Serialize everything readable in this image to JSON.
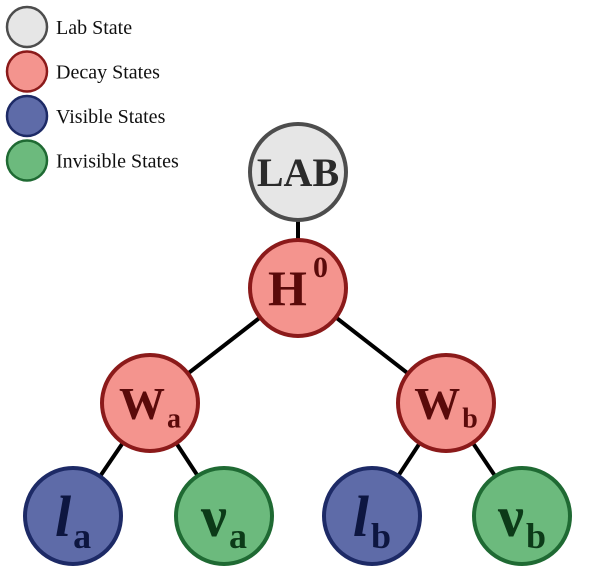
{
  "colors": {
    "lab": {
      "fill": "#e6e6e6",
      "stroke": "#4d4d4d",
      "text": "#2b2b2b"
    },
    "decay": {
      "fill": "#f4948e",
      "stroke": "#8b1a1a",
      "text": "#5a0a0a"
    },
    "visible": {
      "fill": "#5e6ba8",
      "stroke": "#1d2a66",
      "text": "#0d1640"
    },
    "invisible": {
      "fill": "#6cba7d",
      "stroke": "#1f6a33",
      "text": "#0c3a18"
    }
  },
  "legend": [
    {
      "label": "Lab State",
      "kind": "lab"
    },
    {
      "label": "Decay States",
      "kind": "decay"
    },
    {
      "label": "Visible States",
      "kind": "visible"
    },
    {
      "label": "Invisible States",
      "kind": "invisible"
    }
  ],
  "nodes": {
    "lab": {
      "main": "LAB",
      "kind": "lab"
    },
    "higgs": {
      "main": "H",
      "sup": "0",
      "kind": "decay"
    },
    "w_a": {
      "main": "W",
      "sub": "a",
      "kind": "decay"
    },
    "w_b": {
      "main": "W",
      "sub": "b",
      "kind": "decay"
    },
    "l_a": {
      "main": "l",
      "sub": "a",
      "kind": "visible"
    },
    "nu_a": {
      "main": "ν",
      "sub": "a",
      "kind": "invisible"
    },
    "l_b": {
      "main": "l",
      "sub": "b",
      "kind": "visible"
    },
    "nu_b": {
      "main": "ν",
      "sub": "b",
      "kind": "invisible"
    }
  },
  "edges": [
    [
      "lab",
      "higgs"
    ],
    [
      "higgs",
      "w_a"
    ],
    [
      "higgs",
      "w_b"
    ],
    [
      "w_a",
      "l_a"
    ],
    [
      "w_a",
      "nu_a"
    ],
    [
      "w_b",
      "l_b"
    ],
    [
      "w_b",
      "nu_b"
    ]
  ]
}
